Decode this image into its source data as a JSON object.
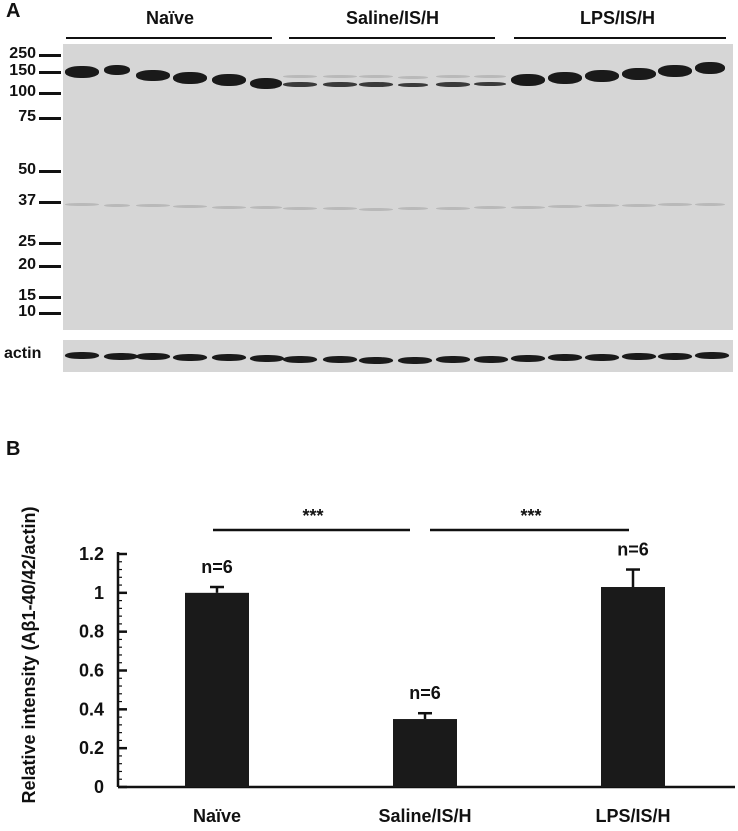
{
  "panel_a": {
    "letter": "A",
    "groups": [
      "Naïve",
      "Saline/IS/H",
      "LPS/IS/H"
    ],
    "mw_markers": [
      "250",
      "150",
      "100",
      "75",
      "50",
      "37",
      "25",
      "20",
      "15",
      "10"
    ],
    "actin_label": "actin"
  },
  "panel_b": {
    "letter": "B",
    "significance": [
      "***",
      "***"
    ]
  },
  "chart_data": {
    "type": "bar",
    "categories": [
      "Naïve",
      "Saline/IS/H",
      "LPS/IS/H"
    ],
    "values": [
      1.0,
      0.35,
      1.03
    ],
    "errors": [
      0.03,
      0.03,
      0.09
    ],
    "annotations": [
      "n=6",
      "n=6",
      "n=6"
    ],
    "ylabel": "Relative intensity (Aβ1-40/42/actin)",
    "yticks": [
      "0",
      "0.2",
      "0.4",
      "0.6",
      "0.8",
      "1",
      "1.2"
    ],
    "ylim": [
      0,
      1.2
    ],
    "bar_color": "#1a1a1a"
  }
}
